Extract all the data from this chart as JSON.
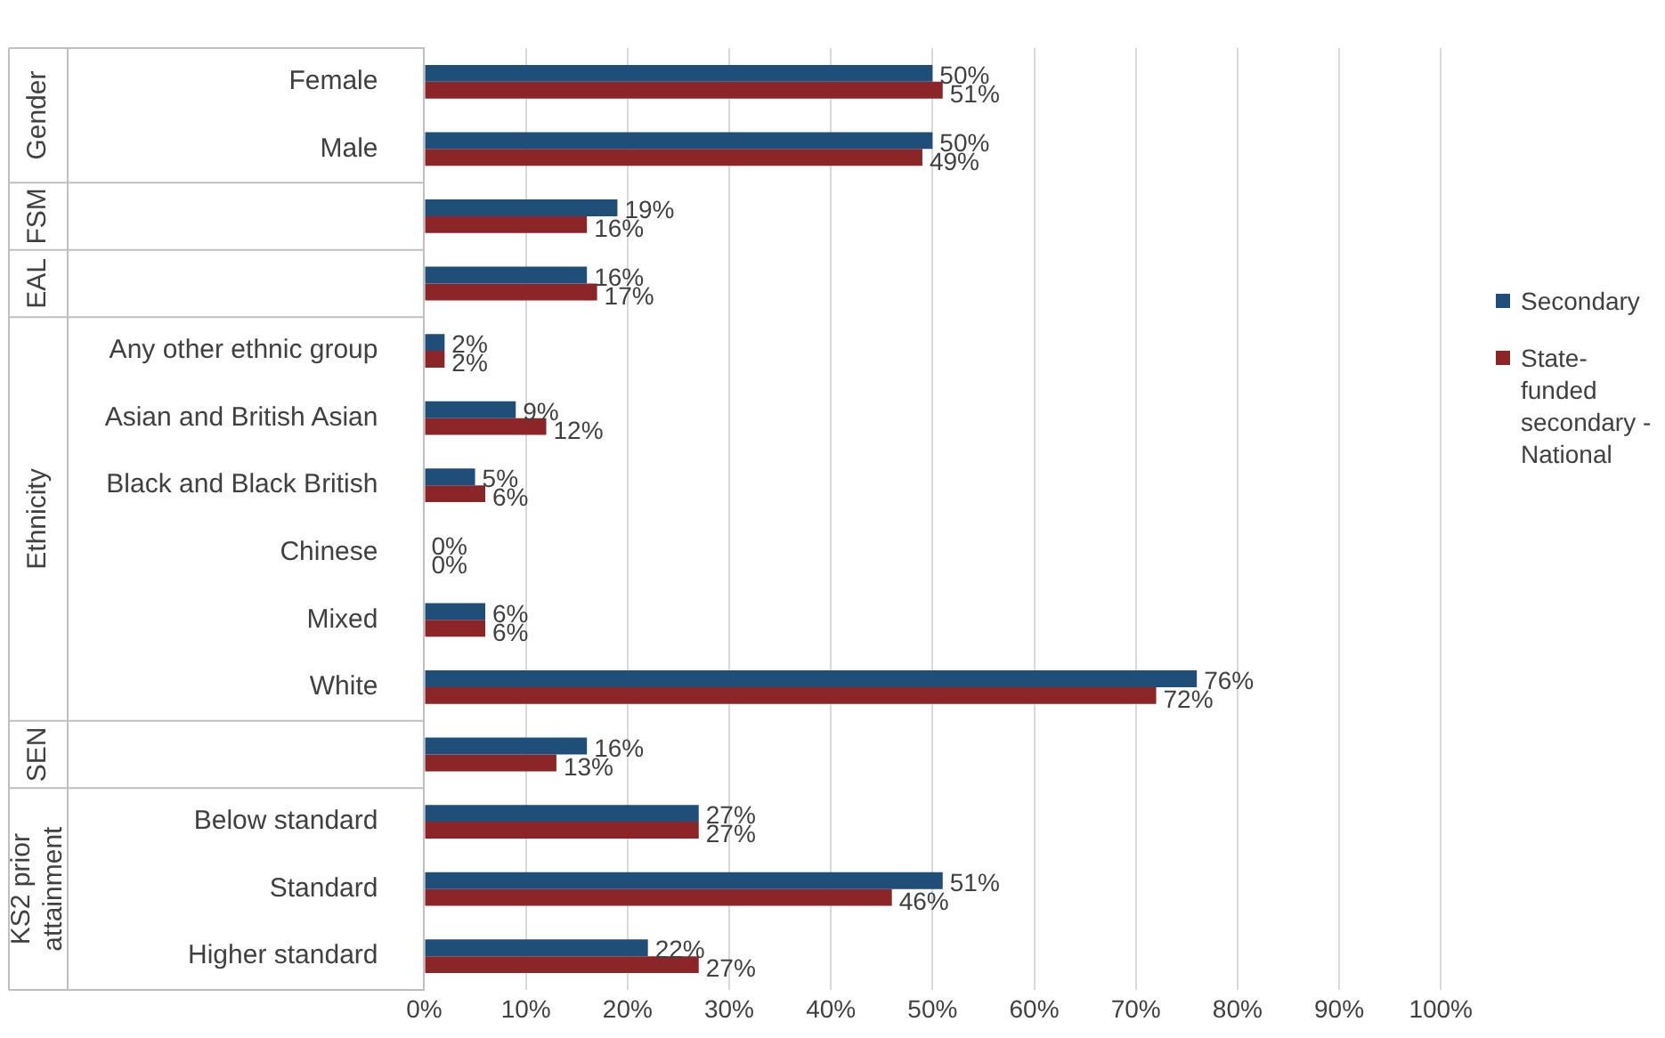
{
  "chart_data": {
    "type": "bar",
    "orientation": "horizontal",
    "categories": [
      "Female",
      "Male",
      null,
      null,
      "Any other ethnic group",
      "Asian and British Asian",
      "Black and Black British",
      "Chinese",
      "Mixed",
      "White",
      null,
      "Below standard",
      "Standard",
      "Higher standard"
    ],
    "series": [
      {
        "name": "Secondary",
        "color": "#1f4e79",
        "values": [
          50,
          50,
          19,
          16,
          2,
          9,
          5,
          0,
          6,
          76,
          16,
          27,
          51,
          22
        ],
        "value_labels": [
          "50%",
          "50%",
          "19%",
          "16%",
          "2%",
          "9%",
          "5%",
          "0%",
          "6%",
          "76%",
          "16%",
          "27%",
          "51%",
          "22%"
        ]
      },
      {
        "name": "State-funded secondary - National",
        "color": "#8b2528",
        "values": [
          51,
          49,
          16,
          17,
          2,
          12,
          6,
          0,
          6,
          72,
          13,
          27,
          46,
          27
        ],
        "value_labels": [
          "51%",
          "49%",
          "16%",
          "17%",
          "2%",
          "12%",
          "6%",
          "0%",
          "6%",
          "72%",
          "13%",
          "27%",
          "46%",
          "27%"
        ]
      }
    ],
    "annotations": [
      "Gender",
      "FSM",
      "EAL",
      "Ethnicity",
      "SEN",
      "KS2 prior attainment"
    ],
    "xlim": [
      0,
      100
    ],
    "xticks": [
      {
        "value": 0,
        "label": "0%"
      },
      {
        "value": 10,
        "label": "10%"
      },
      {
        "value": 20,
        "label": "20%"
      },
      {
        "value": 30,
        "label": "30%"
      },
      {
        "value": 40,
        "label": "40%"
      },
      {
        "value": 50,
        "label": "50%"
      },
      {
        "value": 60,
        "label": "60%"
      },
      {
        "value": 70,
        "label": "70%"
      },
      {
        "value": 80,
        "label": "80%"
      },
      {
        "value": 90,
        "label": "90%"
      },
      {
        "value": 100,
        "label": "100%"
      }
    ],
    "grid": "x",
    "legend": "right"
  }
}
